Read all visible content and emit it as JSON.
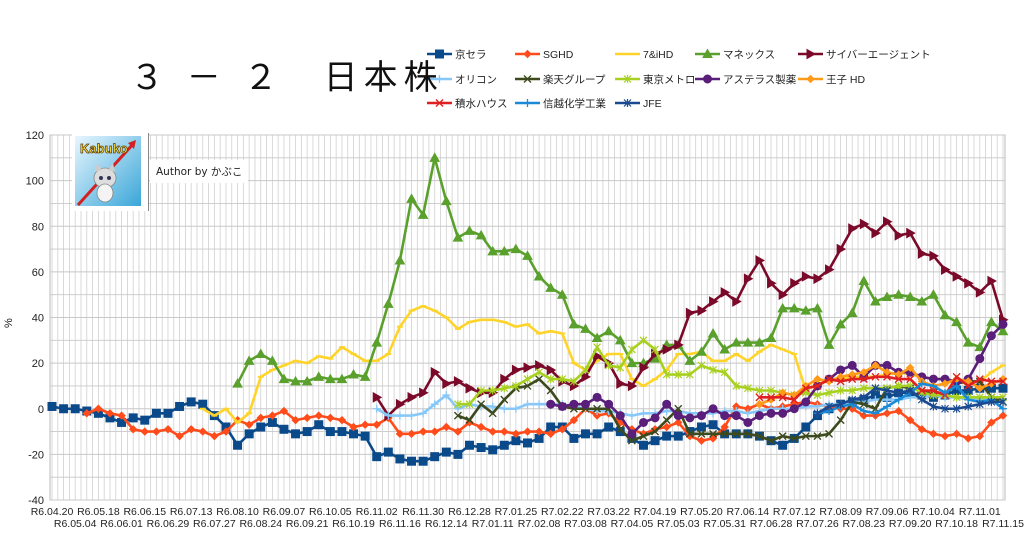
{
  "logo": {
    "text": "Kabuko",
    "author": "Author by かぶこ"
  },
  "chart_data": {
    "type": "line",
    "title": "３ － ２　日本株",
    "ylabel": "%",
    "xlabel": "",
    "ylim": [
      -40,
      120
    ],
    "y_ticks": [
      -40,
      -20,
      0,
      20,
      40,
      60,
      80,
      100,
      120
    ],
    "grid": true,
    "legend_position": "top-right",
    "points": 83,
    "x_tick_labels": [
      "R6.04.20",
      "R6.05.04",
      "R6.05.18",
      "R6.06.01",
      "R6.06.15",
      "R6.06.29",
      "R6.07.13",
      "R6.07.27",
      "R6.08.10",
      "R6.08.24",
      "R6.09.07",
      "R6.09.21",
      "R6.10.05",
      "R6.10.19",
      "R6.11.02",
      "R6.11.16",
      "R6.11.30",
      "R6.12.14",
      "R6.12.28",
      "R7.01.11",
      "R7.01.25",
      "R7.02.08",
      "R7.02.22",
      "R7.03.08",
      "R7.03.22",
      "R7.04.05",
      "R7.04.19",
      "R7.05.03",
      "R7.05.20",
      "R7.05.31",
      "R7.06.14",
      "R7.06.28",
      "R7.07.12",
      "R7.07.26",
      "R7.08.09",
      "R7.08.23",
      "R7.09.06",
      "R7.09.20",
      "R7.10.04",
      "R7.10.18",
      "R7.11.01",
      "R7.11.15"
    ],
    "series": [
      {
        "name": "京セラ",
        "color": "#0b4a8a",
        "marker": "square",
        "start": 0,
        "values": [
          1,
          0,
          0,
          -1,
          -2,
          -4,
          -6,
          -4,
          -5,
          -2,
          -2,
          1,
          3,
          2,
          -3,
          -8,
          -16,
          -11,
          -8,
          -6,
          -9,
          -11,
          -10,
          -7,
          -10,
          -10,
          -11,
          -12,
          -21,
          -19,
          -22,
          -23,
          -23,
          -21,
          -19,
          -20,
          -16,
          -17,
          -18,
          -16,
          -14,
          -15,
          -13,
          -8,
          -8,
          -13,
          -11,
          -11,
          -8,
          -10,
          -13,
          -16,
          -14,
          -12,
          -12,
          -10,
          -8,
          -7,
          -11,
          -11,
          -11,
          -12,
          -14,
          -16,
          -13,
          -8,
          -3,
          0,
          2,
          3,
          4,
          6,
          5,
          7,
          7,
          6,
          5,
          6,
          8,
          8,
          9,
          9,
          9
        ]
      },
      {
        "name": "SGHD",
        "color": "#ff4c1a",
        "marker": "diamond",
        "start": 3,
        "values": [
          -2,
          0,
          -2,
          -3,
          -9,
          -10,
          -10,
          -9,
          -12,
          -9,
          -10,
          -12,
          -10,
          -5,
          -7,
          -4,
          -3,
          -1,
          -5,
          -4,
          -3,
          -4,
          -5,
          -8,
          -7,
          -7,
          -4,
          -11,
          -11,
          -10,
          -10,
          -8,
          -10,
          -6,
          -8,
          -10,
          -10,
          -11,
          -10,
          -10,
          -11,
          -9,
          -5,
          0,
          -3,
          -2,
          -6,
          -9,
          -11,
          -9,
          -8,
          -6,
          -12,
          -14,
          -13,
          -8,
          1,
          0,
          2,
          0,
          1,
          2,
          3,
          2,
          1,
          0,
          0,
          -3,
          -3,
          -2,
          -1,
          -5,
          -9,
          -11,
          -12,
          -11,
          -13,
          -12,
          -6,
          -3
        ]
      },
      {
        "name": "7&iHD",
        "color": "#ffd42a",
        "marker": "dash",
        "start": 13,
        "values": [
          0,
          -3,
          0,
          -6,
          -2,
          14,
          17,
          19,
          21,
          20,
          23,
          22,
          27,
          24,
          21,
          21,
          24,
          36,
          43,
          45,
          43,
          40,
          35,
          38,
          39,
          39,
          38,
          36,
          37,
          33,
          34,
          33,
          20,
          17,
          21,
          24,
          24,
          13,
          10,
          13,
          17,
          24,
          24,
          25,
          21,
          21,
          24,
          21,
          25,
          28,
          26,
          24,
          8,
          11,
          12,
          13,
          14,
          14,
          14,
          15,
          16,
          15,
          14,
          13,
          13,
          12,
          12,
          12,
          16,
          19
        ]
      },
      {
        "name": "マネックス",
        "color": "#5aa02c",
        "marker": "triangle",
        "start": 16,
        "values": [
          11,
          21,
          24,
          21,
          13,
          12,
          12,
          14,
          13,
          13,
          15,
          14,
          29,
          46,
          65,
          92,
          85,
          110,
          91,
          75,
          78,
          76,
          69,
          69,
          70,
          67,
          58,
          53,
          50,
          37,
          35,
          31,
          34,
          30,
          20,
          20,
          22,
          28,
          28,
          21,
          25,
          33,
          26,
          29,
          29,
          29,
          31,
          44,
          44,
          43,
          44,
          28,
          37,
          42,
          56,
          47,
          49,
          50,
          49,
          47,
          50,
          41,
          38,
          29,
          27,
          38,
          34
        ]
      },
      {
        "name": "サイバーエージェント",
        "color": "#7b0a2a",
        "marker": "tri-right",
        "start": 28,
        "values": [
          5,
          -3,
          2,
          5,
          7,
          16,
          11,
          12,
          9,
          7,
          7,
          13,
          17,
          18,
          19,
          17,
          12,
          10,
          14,
          23,
          20,
          11,
          10,
          18,
          24,
          26,
          28,
          42,
          43,
          47,
          51,
          47,
          57,
          65,
          55,
          50,
          55,
          58,
          57,
          61,
          70,
          79,
          81,
          77,
          82,
          76,
          77,
          68,
          67,
          61,
          58,
          55,
          51,
          56,
          39
        ]
      },
      {
        "name": "オリコン",
        "color": "#88c8f8",
        "marker": "plus",
        "start": 28,
        "values": [
          0,
          -3,
          -3,
          -3,
          -2,
          2,
          6,
          0,
          2,
          1,
          1,
          0,
          0,
          2,
          2,
          2,
          2,
          1,
          0,
          -1,
          -1,
          -2,
          -3,
          -2,
          -2,
          -1,
          -1,
          -2,
          -2,
          -2,
          -1,
          -1,
          -2,
          -1,
          0,
          0,
          0,
          1,
          1,
          2,
          2,
          3,
          3,
          4,
          4,
          4,
          5,
          5,
          6,
          5,
          5,
          4,
          4,
          4,
          4
        ]
      },
      {
        "name": "楽天グループ",
        "color": "#3d4a1e",
        "marker": "x",
        "start": 35,
        "values": [
          -3,
          -5,
          2,
          -2,
          4,
          9,
          10,
          13,
          8,
          1,
          0,
          0,
          0,
          0,
          -9,
          -14,
          -12,
          -10,
          -5,
          0,
          -11,
          -11,
          -11,
          -11,
          -11,
          -11,
          -12,
          -14,
          -12,
          -13,
          -12,
          -12,
          -11,
          -5,
          3,
          2,
          0,
          9,
          10,
          9,
          8,
          7,
          6,
          11,
          12,
          12,
          5,
          3
        ]
      },
      {
        "name": "東京メトロ",
        "color": "#a8d020",
        "marker": "asterisk",
        "start": 35,
        "values": [
          2,
          2,
          8,
          8,
          9,
          10,
          13,
          16,
          13,
          13,
          12,
          17,
          27,
          19,
          18,
          26,
          30,
          26,
          15,
          15,
          15,
          19,
          17,
          16,
          10,
          9,
          8,
          8,
          7,
          6,
          7,
          6,
          7,
          8,
          8,
          9,
          9,
          9,
          10,
          10,
          7,
          6,
          6,
          5,
          5,
          5,
          5,
          5
        ]
      },
      {
        "name": "アステラス製薬",
        "color": "#5a1f7a",
        "marker": "circle",
        "start": 43,
        "values": [
          2,
          1,
          2,
          2,
          5,
          2,
          -3,
          -11,
          -6,
          -4,
          2,
          -3,
          -4,
          -3,
          0,
          -3,
          -3,
          -6,
          -3,
          -2,
          -2,
          0,
          3,
          10,
          13,
          17,
          19,
          14,
          19,
          19,
          16,
          16,
          14,
          13,
          13,
          12,
          13,
          22,
          32,
          37
        ]
      },
      {
        "name": "王子 HD",
        "color": "#ff9a1a",
        "marker": "diamond",
        "start": 61,
        "values": [
          2,
          4,
          7,
          6,
          10,
          13,
          12,
          14,
          15,
          16,
          19,
          16,
          15,
          18,
          12,
          10,
          11,
          13,
          12,
          9,
          11,
          13
        ]
      },
      {
        "name": "積水ハウス",
        "color": "#e02020",
        "marker": "x",
        "start": 61,
        "values": [
          5,
          5,
          5,
          4,
          9,
          10,
          13,
          12,
          13,
          13,
          14,
          14,
          13,
          13,
          8,
          8,
          6,
          14,
          10,
          13,
          12,
          12
        ]
      },
      {
        "name": "信越化学工業",
        "color": "#1a8ad8",
        "marker": "plus",
        "start": 66,
        "values": [
          -2,
          -1,
          1,
          2,
          -1,
          -2,
          1,
          4,
          7,
          11,
          10,
          7,
          10,
          4,
          3,
          4,
          0
        ]
      },
      {
        "name": "JFE",
        "color": "#1a4a90",
        "marker": "asterisk",
        "start": 66,
        "values": [
          -2,
          1,
          2,
          4,
          5,
          9,
          8,
          7,
          8,
          4,
          1,
          0,
          0,
          1,
          2,
          3,
          3
        ]
      }
    ]
  }
}
